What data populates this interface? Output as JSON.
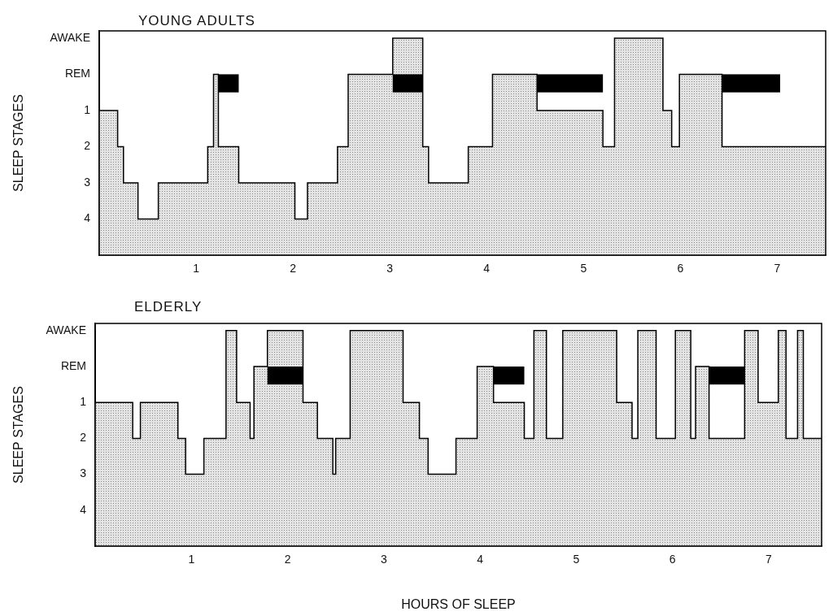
{
  "chart_data": [
    {
      "type": "line",
      "title": "YOUNG ADULTS",
      "y_label": "SLEEP STAGES",
      "x": [
        0,
        0.19,
        0.25,
        0.4,
        0.61,
        1.12,
        1.18,
        1.23,
        1.44,
        2.02,
        2.15,
        2.46,
        2.57,
        3.03,
        3.34,
        3.4,
        3.81,
        4.06,
        4.52,
        5.2,
        5.32,
        5.82,
        5.91,
        5.99,
        6.43,
        7.03,
        7.5
      ],
      "values": [
        -1,
        1,
        2,
        3,
        4,
        3,
        2,
        0,
        2,
        3,
        4,
        3,
        2,
        0,
        -1,
        2,
        3,
        2,
        0,
        1,
        2,
        -1,
        1,
        2,
        0,
        2,
        2
      ],
      "color": "#000000",
      "line_style": "stepped",
      "grid": false,
      "xlim": [
        0,
        7.5
      ],
      "xticks": [
        1,
        2,
        3,
        4,
        5,
        6,
        7
      ],
      "ylim": [
        5,
        -1.2
      ],
      "yticks": [
        {
          "value": -1,
          "label": "AWAKE"
        },
        {
          "value": 0,
          "label": "REM"
        },
        1,
        2,
        3,
        4
      ]
    },
    {
      "type": "line",
      "title": "ELDERLY",
      "y_label": "SLEEP STAGES",
      "x_label": "HOURS OF SLEEP",
      "x": [
        0,
        0.39,
        0.47,
        0.86,
        0.94,
        1.13,
        1.36,
        1.47,
        1.61,
        1.65,
        1.79,
        2.16,
        2.31,
        2.47,
        2.5,
        2.65,
        3.2,
        3.37,
        3.46,
        3.75,
        3.97,
        4.14,
        4.46,
        4.56,
        4.69,
        4.86,
        5.42,
        5.58,
        5.64,
        5.83,
        6.03,
        6.19,
        6.24,
        6.38,
        6.75,
        6.89,
        7.1,
        7.18,
        7.3,
        7.36,
        7.48,
        7.55
      ],
      "values": [
        -1,
        1,
        2,
        1,
        2,
        3,
        2,
        -1,
        1,
        2,
        0,
        -1,
        1,
        2,
        3,
        2,
        -1,
        1,
        2,
        3,
        2,
        0,
        1,
        2,
        -1,
        2,
        -1,
        1,
        2,
        -1,
        2,
        -1,
        2,
        0,
        2,
        -1,
        1,
        -1,
        2,
        -1,
        2,
        2
      ],
      "color": "#000000",
      "line_style": "stepped",
      "grid": false,
      "xlim": [
        0,
        7.55
      ],
      "xticks": [
        1,
        2,
        3,
        4,
        5,
        6,
        7
      ],
      "ylim": [
        5,
        -1.2
      ],
      "yticks": [
        {
          "value": -1,
          "label": "AWAKE"
        },
        {
          "value": 0,
          "label": "REM"
        },
        1,
        2,
        3,
        4
      ]
    }
  ]
}
